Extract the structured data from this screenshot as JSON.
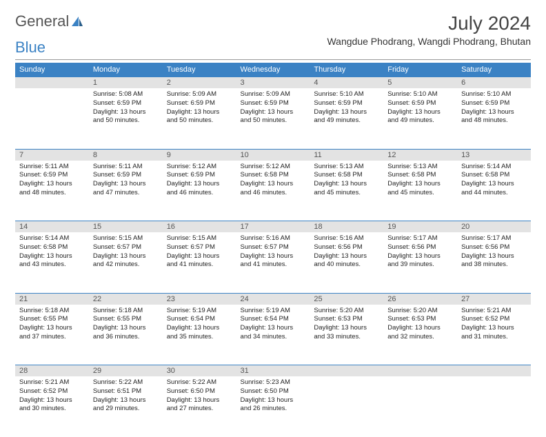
{
  "logo": {
    "text1": "General",
    "text2": "Blue"
  },
  "title": "July 2024",
  "location": "Wangdue Phodrang, Wangdi Phodrang, Bhutan",
  "colors": {
    "header_bg": "#3b82c4",
    "header_text": "#ffffff",
    "daynum_bg": "#e3e3e3",
    "border": "#3b82c4",
    "text": "#222222"
  },
  "day_headers": [
    "Sunday",
    "Monday",
    "Tuesday",
    "Wednesday",
    "Thursday",
    "Friday",
    "Saturday"
  ],
  "weeks": [
    {
      "nums": [
        "",
        "1",
        "2",
        "3",
        "4",
        "5",
        "6"
      ],
      "cells": [
        {
          "sunrise": "",
          "sunset": "",
          "daylight": ""
        },
        {
          "sunrise": "Sunrise: 5:08 AM",
          "sunset": "Sunset: 6:59 PM",
          "daylight": "Daylight: 13 hours and 50 minutes."
        },
        {
          "sunrise": "Sunrise: 5:09 AM",
          "sunset": "Sunset: 6:59 PM",
          "daylight": "Daylight: 13 hours and 50 minutes."
        },
        {
          "sunrise": "Sunrise: 5:09 AM",
          "sunset": "Sunset: 6:59 PM",
          "daylight": "Daylight: 13 hours and 50 minutes."
        },
        {
          "sunrise": "Sunrise: 5:10 AM",
          "sunset": "Sunset: 6:59 PM",
          "daylight": "Daylight: 13 hours and 49 minutes."
        },
        {
          "sunrise": "Sunrise: 5:10 AM",
          "sunset": "Sunset: 6:59 PM",
          "daylight": "Daylight: 13 hours and 49 minutes."
        },
        {
          "sunrise": "Sunrise: 5:10 AM",
          "sunset": "Sunset: 6:59 PM",
          "daylight": "Daylight: 13 hours and 48 minutes."
        }
      ]
    },
    {
      "nums": [
        "7",
        "8",
        "9",
        "10",
        "11",
        "12",
        "13"
      ],
      "cells": [
        {
          "sunrise": "Sunrise: 5:11 AM",
          "sunset": "Sunset: 6:59 PM",
          "daylight": "Daylight: 13 hours and 48 minutes."
        },
        {
          "sunrise": "Sunrise: 5:11 AM",
          "sunset": "Sunset: 6:59 PM",
          "daylight": "Daylight: 13 hours and 47 minutes."
        },
        {
          "sunrise": "Sunrise: 5:12 AM",
          "sunset": "Sunset: 6:59 PM",
          "daylight": "Daylight: 13 hours and 46 minutes."
        },
        {
          "sunrise": "Sunrise: 5:12 AM",
          "sunset": "Sunset: 6:58 PM",
          "daylight": "Daylight: 13 hours and 46 minutes."
        },
        {
          "sunrise": "Sunrise: 5:13 AM",
          "sunset": "Sunset: 6:58 PM",
          "daylight": "Daylight: 13 hours and 45 minutes."
        },
        {
          "sunrise": "Sunrise: 5:13 AM",
          "sunset": "Sunset: 6:58 PM",
          "daylight": "Daylight: 13 hours and 45 minutes."
        },
        {
          "sunrise": "Sunrise: 5:14 AM",
          "sunset": "Sunset: 6:58 PM",
          "daylight": "Daylight: 13 hours and 44 minutes."
        }
      ]
    },
    {
      "nums": [
        "14",
        "15",
        "16",
        "17",
        "18",
        "19",
        "20"
      ],
      "cells": [
        {
          "sunrise": "Sunrise: 5:14 AM",
          "sunset": "Sunset: 6:58 PM",
          "daylight": "Daylight: 13 hours and 43 minutes."
        },
        {
          "sunrise": "Sunrise: 5:15 AM",
          "sunset": "Sunset: 6:57 PM",
          "daylight": "Daylight: 13 hours and 42 minutes."
        },
        {
          "sunrise": "Sunrise: 5:15 AM",
          "sunset": "Sunset: 6:57 PM",
          "daylight": "Daylight: 13 hours and 41 minutes."
        },
        {
          "sunrise": "Sunrise: 5:16 AM",
          "sunset": "Sunset: 6:57 PM",
          "daylight": "Daylight: 13 hours and 41 minutes."
        },
        {
          "sunrise": "Sunrise: 5:16 AM",
          "sunset": "Sunset: 6:56 PM",
          "daylight": "Daylight: 13 hours and 40 minutes."
        },
        {
          "sunrise": "Sunrise: 5:17 AM",
          "sunset": "Sunset: 6:56 PM",
          "daylight": "Daylight: 13 hours and 39 minutes."
        },
        {
          "sunrise": "Sunrise: 5:17 AM",
          "sunset": "Sunset: 6:56 PM",
          "daylight": "Daylight: 13 hours and 38 minutes."
        }
      ]
    },
    {
      "nums": [
        "21",
        "22",
        "23",
        "24",
        "25",
        "26",
        "27"
      ],
      "cells": [
        {
          "sunrise": "Sunrise: 5:18 AM",
          "sunset": "Sunset: 6:55 PM",
          "daylight": "Daylight: 13 hours and 37 minutes."
        },
        {
          "sunrise": "Sunrise: 5:18 AM",
          "sunset": "Sunset: 6:55 PM",
          "daylight": "Daylight: 13 hours and 36 minutes."
        },
        {
          "sunrise": "Sunrise: 5:19 AM",
          "sunset": "Sunset: 6:54 PM",
          "daylight": "Daylight: 13 hours and 35 minutes."
        },
        {
          "sunrise": "Sunrise: 5:19 AM",
          "sunset": "Sunset: 6:54 PM",
          "daylight": "Daylight: 13 hours and 34 minutes."
        },
        {
          "sunrise": "Sunrise: 5:20 AM",
          "sunset": "Sunset: 6:53 PM",
          "daylight": "Daylight: 13 hours and 33 minutes."
        },
        {
          "sunrise": "Sunrise: 5:20 AM",
          "sunset": "Sunset: 6:53 PM",
          "daylight": "Daylight: 13 hours and 32 minutes."
        },
        {
          "sunrise": "Sunrise: 5:21 AM",
          "sunset": "Sunset: 6:52 PM",
          "daylight": "Daylight: 13 hours and 31 minutes."
        }
      ]
    },
    {
      "nums": [
        "28",
        "29",
        "30",
        "31",
        "",
        "",
        ""
      ],
      "cells": [
        {
          "sunrise": "Sunrise: 5:21 AM",
          "sunset": "Sunset: 6:52 PM",
          "daylight": "Daylight: 13 hours and 30 minutes."
        },
        {
          "sunrise": "Sunrise: 5:22 AM",
          "sunset": "Sunset: 6:51 PM",
          "daylight": "Daylight: 13 hours and 29 minutes."
        },
        {
          "sunrise": "Sunrise: 5:22 AM",
          "sunset": "Sunset: 6:50 PM",
          "daylight": "Daylight: 13 hours and 27 minutes."
        },
        {
          "sunrise": "Sunrise: 5:23 AM",
          "sunset": "Sunset: 6:50 PM",
          "daylight": "Daylight: 13 hours and 26 minutes."
        },
        {
          "sunrise": "",
          "sunset": "",
          "daylight": ""
        },
        {
          "sunrise": "",
          "sunset": "",
          "daylight": ""
        },
        {
          "sunrise": "",
          "sunset": "",
          "daylight": ""
        }
      ]
    }
  ]
}
